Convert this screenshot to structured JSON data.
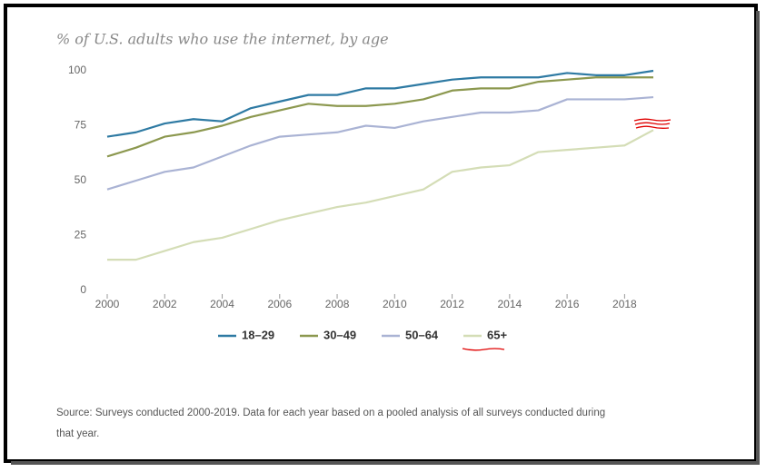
{
  "chart_data": {
    "type": "line",
    "title": "% of U.S. adults who use the internet, by age",
    "x": [
      2000,
      2001,
      2002,
      2003,
      2004,
      2005,
      2006,
      2007,
      2008,
      2009,
      2010,
      2011,
      2012,
      2013,
      2014,
      2015,
      2016,
      2017,
      2018,
      2019
    ],
    "series": [
      {
        "name": "18–29",
        "color": "#2e7aa3",
        "values": [
          70,
          72,
          76,
          78,
          77,
          83,
          86,
          89,
          89,
          92,
          92,
          94,
          96,
          97,
          97,
          97,
          99,
          98,
          98,
          100
        ]
      },
      {
        "name": "30–49",
        "color": "#8c984f",
        "values": [
          61,
          65,
          70,
          72,
          75,
          79,
          82,
          85,
          84,
          84,
          85,
          87,
          91,
          92,
          92,
          95,
          96,
          97,
          97,
          97
        ]
      },
      {
        "name": "50–64",
        "color": "#aab3d4",
        "values": [
          46,
          50,
          54,
          56,
          61,
          66,
          70,
          71,
          72,
          75,
          74,
          77,
          79,
          81,
          81,
          82,
          87,
          87,
          87,
          88
        ]
      },
      {
        "name": "65+",
        "color": "#d4ddb6",
        "values": [
          14,
          14,
          18,
          22,
          24,
          28,
          32,
          35,
          38,
          40,
          43,
          46,
          54,
          56,
          57,
          63,
          64,
          65,
          66,
          73
        ]
      }
    ],
    "xlim": [
      2000,
      2019
    ],
    "xticks": [
      2000,
      2002,
      2004,
      2006,
      2008,
      2010,
      2012,
      2014,
      2016,
      2018
    ],
    "ylim": [
      0,
      100
    ],
    "yticks": [
      0,
      25,
      50,
      75,
      100
    ],
    "grid": false,
    "source": "Source: Surveys conducted 2000-2019. Data for each year based on a pooled analysis of all surveys conducted during",
    "source_cont": "that year."
  }
}
